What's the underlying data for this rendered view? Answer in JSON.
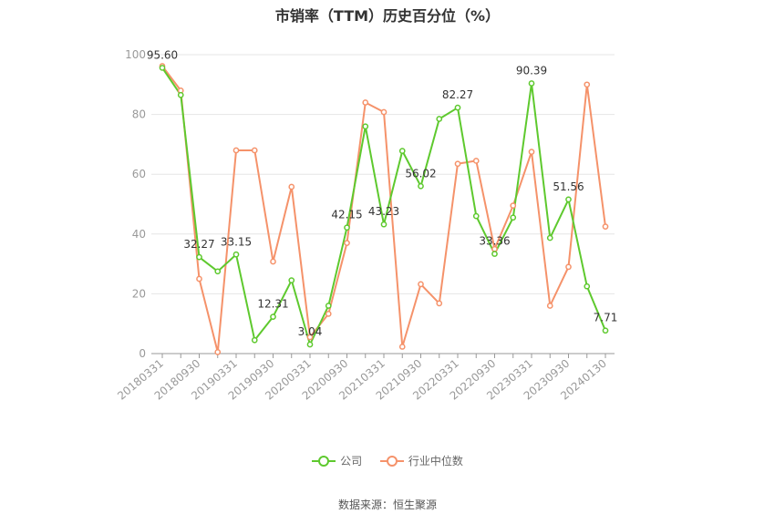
{
  "title": "市销率（TTM）历史百分位（%）",
  "source": "数据来源：恒生聚源",
  "chart_data": {
    "type": "line",
    "ylim": [
      0,
      100
    ],
    "yticks": [
      0,
      20,
      40,
      60,
      80,
      100
    ],
    "grid": true,
    "legend_position": "bottom",
    "x": [
      "20180331",
      "20180630",
      "20180930",
      "20181231",
      "20190331",
      "20190630",
      "20190930",
      "20191231",
      "20200331",
      "20200630",
      "20200930",
      "20201231",
      "20210331",
      "20210630",
      "20210930",
      "20211231",
      "20220331",
      "20220630",
      "20220930",
      "20221231",
      "20230331",
      "20230630",
      "20230930",
      "20231231",
      "20240130"
    ],
    "x_tick_labels": [
      "20180331",
      "20180930",
      "20190331",
      "20190930",
      "20200331",
      "20200930",
      "20210331",
      "20210930",
      "20220331",
      "20220930",
      "20230331",
      "20230930",
      "20240130"
    ],
    "series": [
      {
        "name": "公司",
        "color": "#5ec92e",
        "values": [
          95.6,
          86.5,
          32.27,
          27.5,
          33.15,
          4.5,
          12.31,
          24.5,
          3.04,
          16.0,
          42.15,
          76.0,
          43.23,
          67.8,
          56.02,
          78.5,
          82.27,
          46.0,
          33.36,
          45.5,
          90.39,
          38.7,
          51.56,
          22.5,
          7.71
        ]
      },
      {
        "name": "行业中位数",
        "color": "#f5926a",
        "values": [
          96.2,
          88.0,
          25.0,
          0.5,
          68.0,
          68.0,
          30.8,
          55.8,
          5.5,
          13.3,
          37.0,
          84.0,
          80.8,
          2.3,
          23.2,
          16.8,
          63.5,
          64.5,
          35.0,
          49.5,
          67.5,
          16.0,
          29.0,
          90.0,
          42.5
        ]
      }
    ],
    "data_labels": [
      {
        "index": 0,
        "text": "95.60"
      },
      {
        "index": 2,
        "text": "32.27"
      },
      {
        "index": 4,
        "text": "33.15"
      },
      {
        "index": 6,
        "text": "12.31"
      },
      {
        "index": 8,
        "text": "3.04"
      },
      {
        "index": 10,
        "text": "42.15"
      },
      {
        "index": 12,
        "text": "43.23"
      },
      {
        "index": 14,
        "text": "56.02"
      },
      {
        "index": 16,
        "text": "82.27"
      },
      {
        "index": 18,
        "text": "33.36"
      },
      {
        "index": 20,
        "text": "90.39"
      },
      {
        "index": 22,
        "text": "51.56"
      },
      {
        "index": 24,
        "text": "7.71"
      }
    ]
  }
}
